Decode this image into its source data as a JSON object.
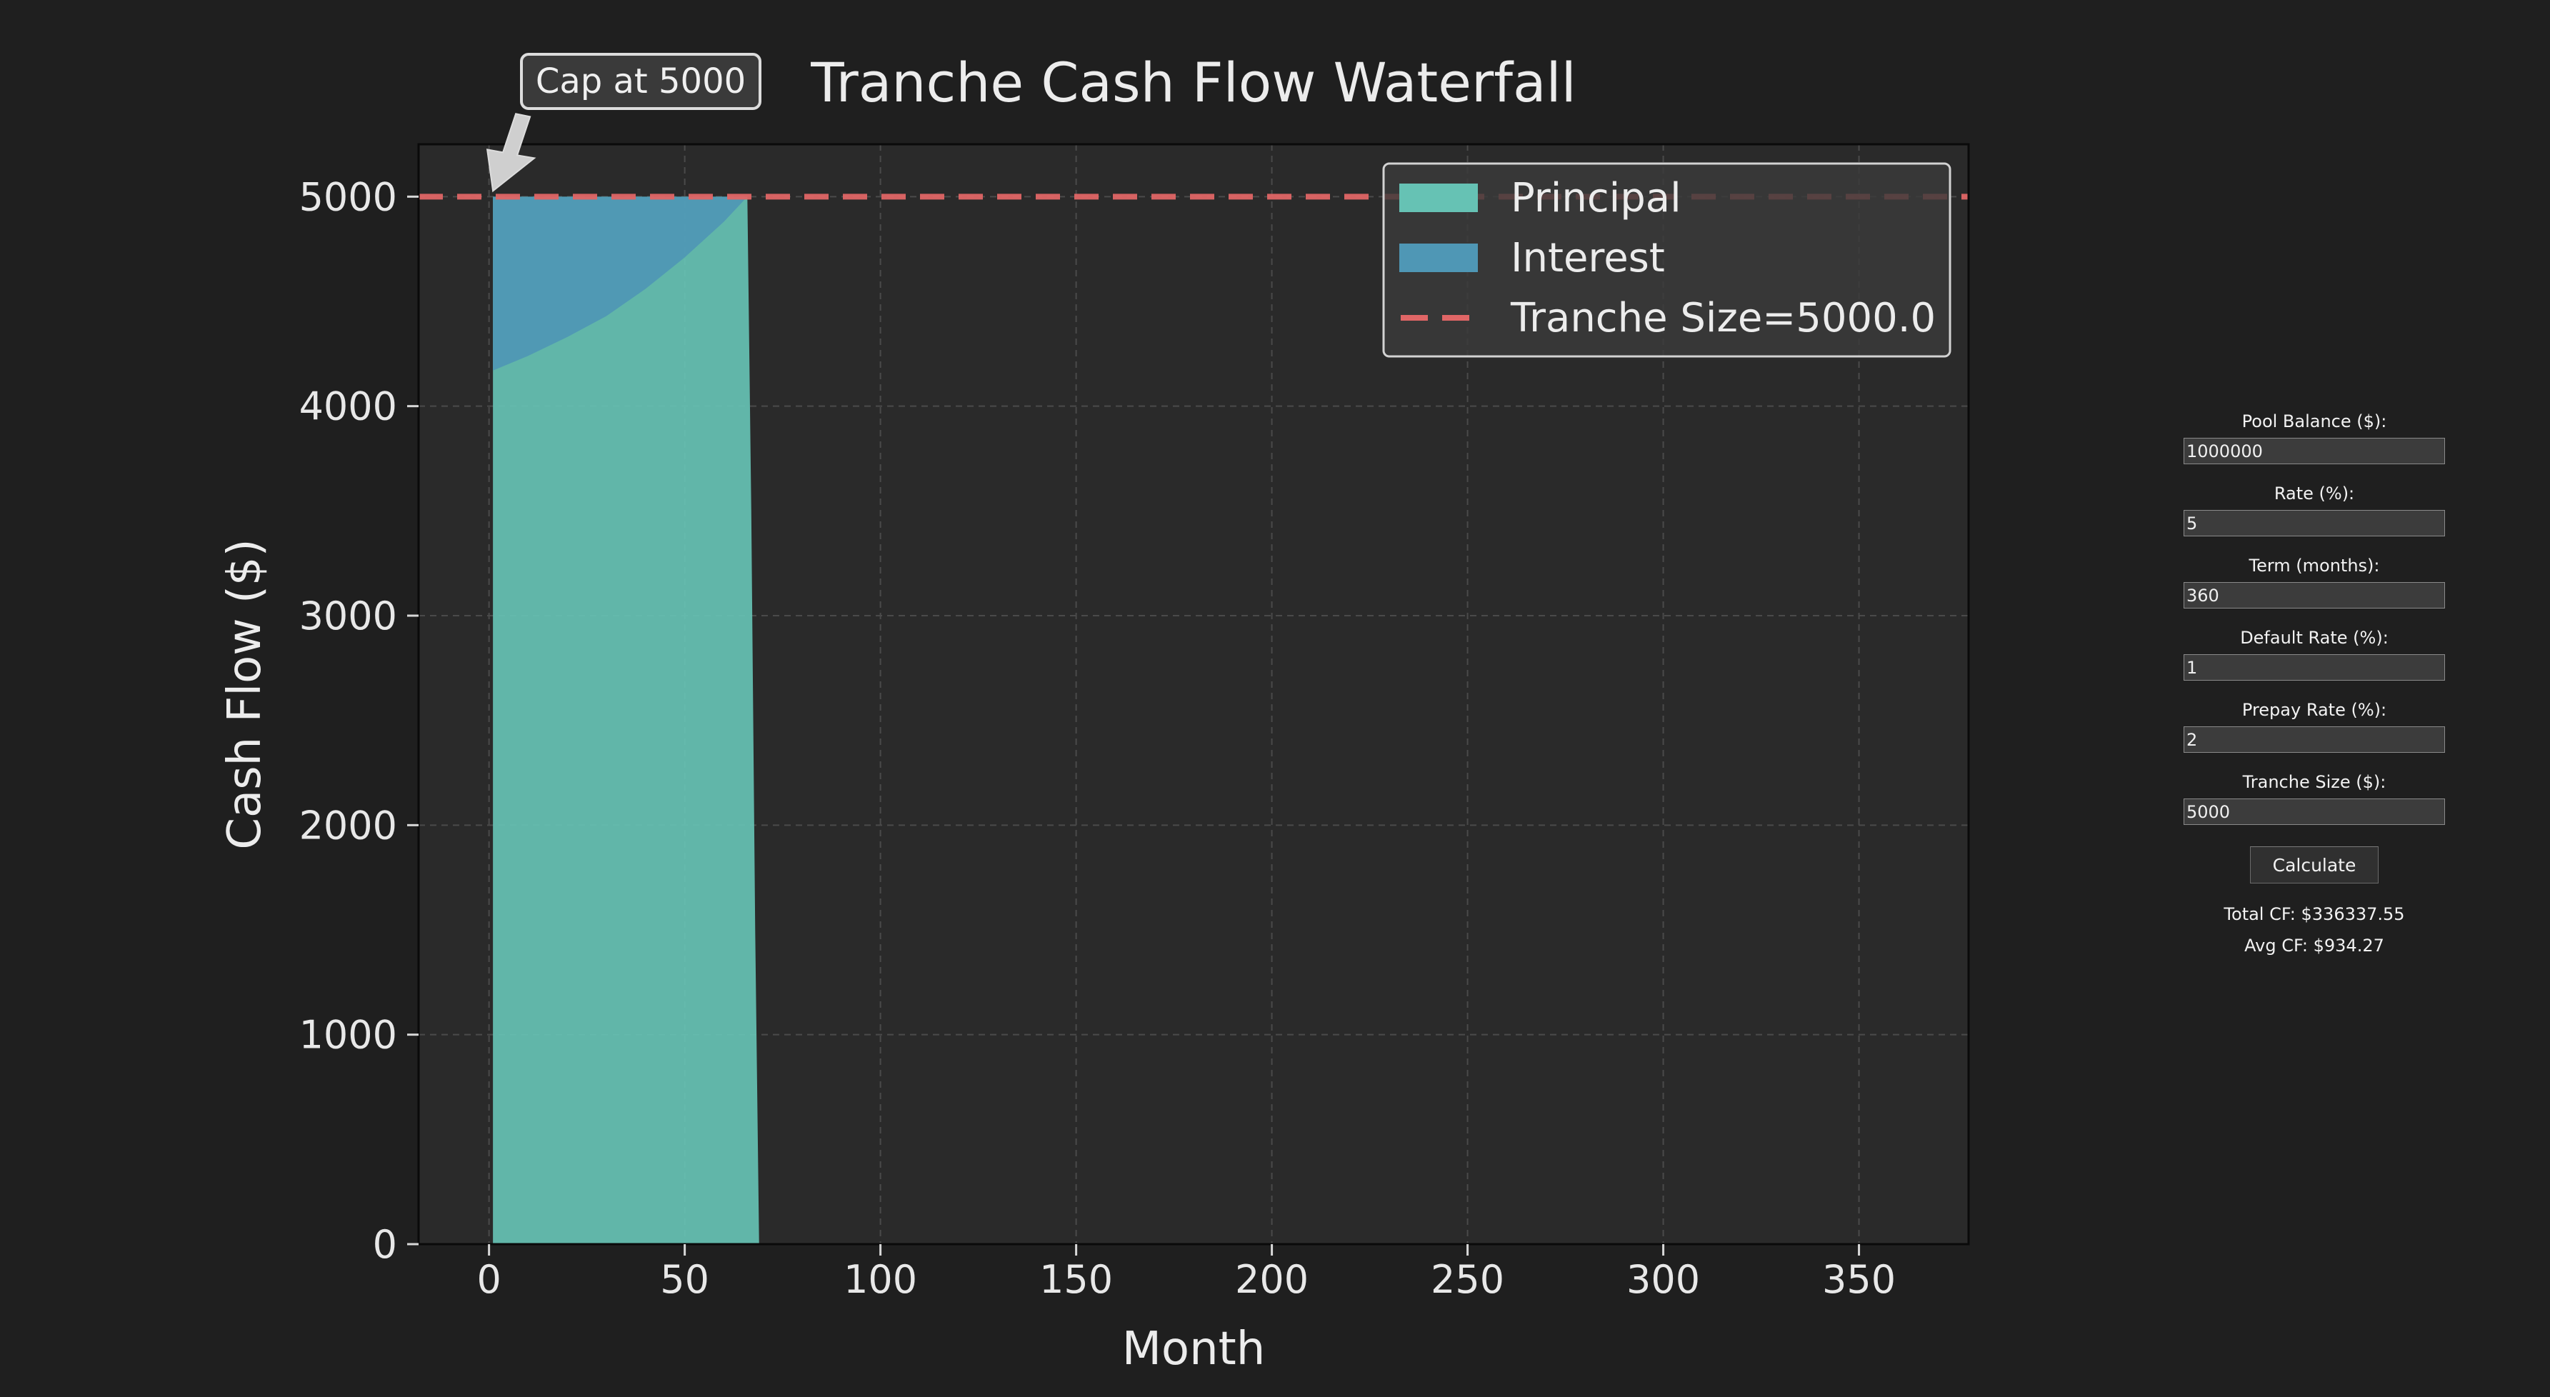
{
  "chart_data": {
    "type": "area",
    "title": "Tranche Cash Flow Waterfall",
    "xlabel": "Month",
    "ylabel": "Cash Flow ($)",
    "xlim": [
      -18,
      378
    ],
    "ylim": [
      0,
      5250
    ],
    "xticks": [
      0,
      50,
      100,
      150,
      200,
      250,
      300,
      350
    ],
    "yticks": [
      0,
      1000,
      2000,
      3000,
      4000,
      5000
    ],
    "grid": true,
    "legend_position": "top-right",
    "series": [
      {
        "name": "Principal",
        "color": "#66c2b4",
        "x": [
          1,
          66,
          67,
          68,
          69
        ],
        "y": [
          5000,
          5000,
          3500,
          1500,
          0
        ]
      },
      {
        "name": "Interest",
        "color": "#4f97b5",
        "x": [
          1,
          10,
          20,
          30,
          40,
          50,
          60,
          66
        ],
        "y_bottom": [
          4170,
          4240,
          4330,
          4430,
          4560,
          4710,
          4880,
          5000
        ],
        "y_top": [
          5000,
          5000,
          5000,
          5000,
          5000,
          5000,
          5000,
          5000
        ]
      }
    ],
    "reference_line": {
      "name": "Tranche Size=5000.0",
      "y": 5000,
      "color": "#e06666",
      "style": "dashed"
    },
    "annotation": {
      "text": "Cap at 5000",
      "x": 1,
      "y": 5000
    }
  },
  "controls": {
    "pool_balance": {
      "label": "Pool Balance ($):",
      "value": "1000000"
    },
    "rate": {
      "label": "Rate (%):",
      "value": "5"
    },
    "term": {
      "label": "Term (months):",
      "value": "360"
    },
    "default_rate": {
      "label": "Default Rate (%):",
      "value": "1"
    },
    "prepay_rate": {
      "label": "Prepay Rate (%):",
      "value": "2"
    },
    "tranche_size": {
      "label": "Tranche Size ($):",
      "value": "5000"
    },
    "calculate_label": "Calculate"
  },
  "results": {
    "total_cf": "Total CF: $336337.55",
    "avg_cf": "Avg CF: $934.27"
  },
  "colors": {
    "background": "#1f1f1f",
    "plot_background": "#2a2a2a",
    "principal": "#66c2b4",
    "interest": "#4f97b5",
    "tranche_line": "#e06666"
  }
}
